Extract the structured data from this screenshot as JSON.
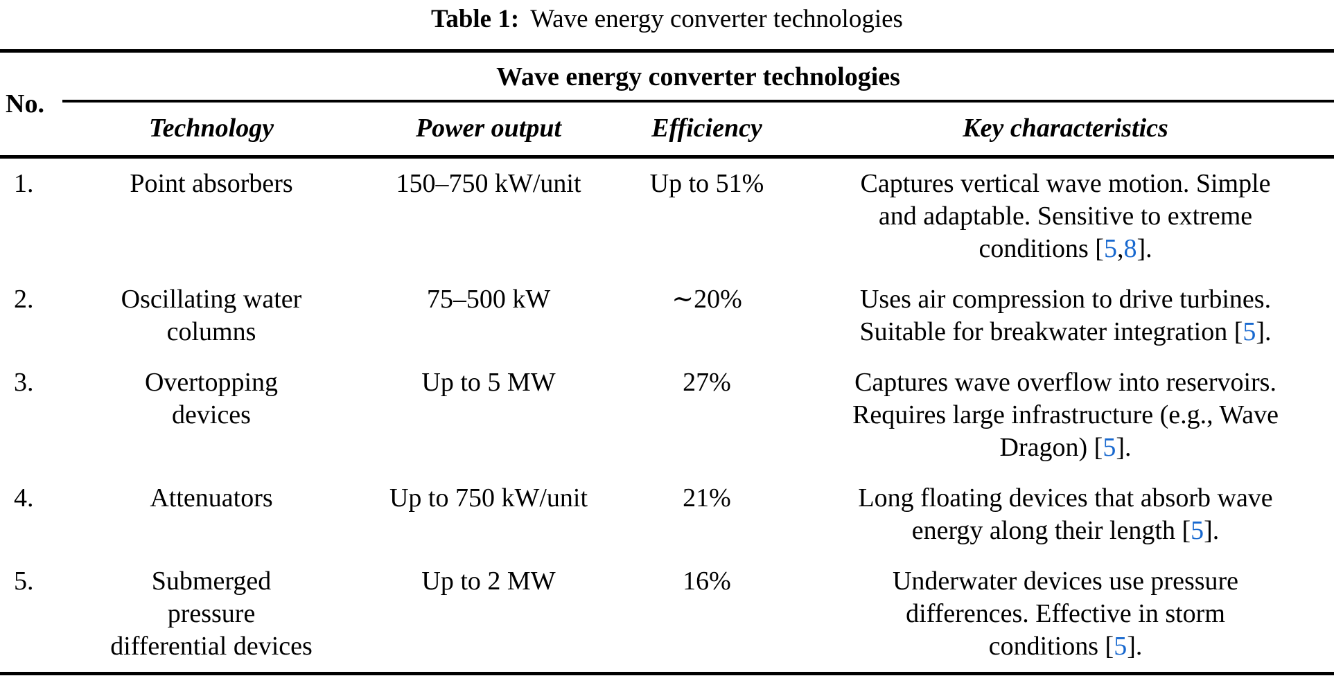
{
  "caption": {
    "label": "Table 1:",
    "title": "Wave energy converter technologies"
  },
  "table": {
    "no_header": "No.",
    "group_header": "Wave energy converter technologies",
    "columns": [
      "Technology",
      "Power output",
      "Efficiency",
      "Key characteristics"
    ],
    "rows": [
      {
        "no": "1.",
        "technology": "Point absorbers",
        "power_output": "150–750 kW/unit",
        "efficiency": "Up to 51%",
        "key_characteristics": "Captures vertical wave motion. Simple\nand adaptable. Sensitive to extreme\nconditions [5,8]."
      },
      {
        "no": "2.",
        "technology": "Oscillating water\ncolumns",
        "power_output": "75–500 kW",
        "efficiency": "∼20%",
        "key_characteristics": "Uses air compression to drive turbines.\nSuitable for breakwater integration [5]."
      },
      {
        "no": "3.",
        "technology": "Overtopping\ndevices",
        "power_output": "Up to 5 MW",
        "efficiency": "27%",
        "key_characteristics": "Captures wave overflow into reservoirs.\nRequires large infrastructure (e.g., Wave\nDragon) [5]."
      },
      {
        "no": "4.",
        "technology": "Attenuators",
        "power_output": "Up to 750 kW/unit",
        "efficiency": "21%",
        "key_characteristics": "Long floating devices that absorb wave\nenergy along their length [5]."
      },
      {
        "no": "5.",
        "technology": "Submerged\npressure\ndifferential devices",
        "power_output": "Up to 2 MW",
        "efficiency": "16%",
        "key_characteristics": "Underwater devices use pressure\ndifferences. Effective in storm\nconditions [5]."
      }
    ]
  },
  "colors": {
    "text": "#000000",
    "background": "#ffffff",
    "rule": "#000000",
    "citation_link": "#1768cf"
  }
}
